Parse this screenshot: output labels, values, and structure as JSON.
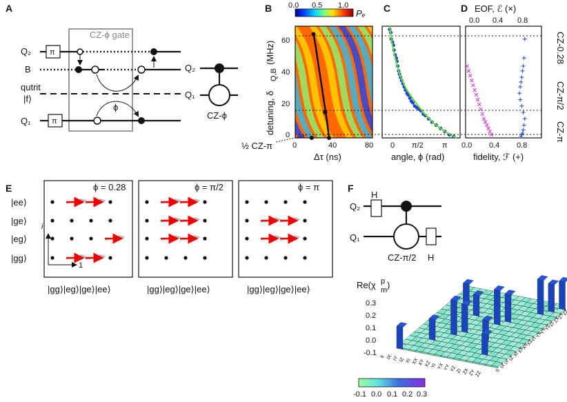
{
  "panels": {
    "A": {
      "letter": "A",
      "box_title": "CZ-ϕ gate",
      "q2": "Q₂",
      "b": "B",
      "qutrit": "qutrit",
      "f_state": "|f⟩",
      "q1": "Q₁",
      "pi": "π",
      "phi": "ϕ",
      "sym_q2": "Q₂",
      "sym_q1": "Q₁",
      "sym_label": "CZ-ϕ"
    },
    "B": {
      "letter": "B",
      "colorbar_ticks": [
        "0.0",
        "0.5",
        "1.0"
      ],
      "colorbar_label": "Pₑ",
      "ylabel": "detuning, δ",
      "ylabel_sub": "Q,B",
      "ylabel_unit": "(MHz)",
      "xlabel": "Δτ  (ns)",
      "x_ticks": [
        "0",
        "40",
        "80"
      ],
      "y_ticks": [
        "0",
        "20",
        "40",
        "60"
      ],
      "annotation": "½ CZ-π"
    },
    "C": {
      "letter": "C",
      "xlabel": "angle, ϕ (rad)",
      "x_ticks": [
        "0",
        "π/2",
        "π"
      ]
    },
    "D": {
      "letter": "D",
      "top_label": "EOF, ℰ (×)",
      "top_ticks": [
        "0.0",
        "0.4",
        "0.8"
      ],
      "xlabel": "fidelity, ℱ (+)",
      "x_ticks": [
        "0.0",
        "0.4",
        "0.8"
      ],
      "right_labels": [
        "CZ-0.28",
        "CZ-π/2",
        "CZ-π"
      ]
    },
    "E": {
      "letter": "E",
      "row_labels": [
        "|ee⟩",
        "|ge⟩",
        "|eg⟩",
        "|gg⟩"
      ],
      "col_labels": "|gg⟩|eg⟩|ge⟩|ee⟩",
      "titles": [
        "ϕ = 0.28",
        "ϕ = π/2",
        "ϕ = π"
      ],
      "axis_i": "i",
      "axis_1": "1"
    },
    "F": {
      "letter": "F",
      "h": "H",
      "q2": "Q₂",
      "q1": "Q₁",
      "gate": "CZ-π/2",
      "zlabel": "Re(χ",
      "zlabel_sup": "p",
      "zlabel_sub": "m",
      "z_ticks": [
        "0.3",
        "0.2",
        "0.1",
        "0.0",
        "-0.1"
      ],
      "cb_ticks": [
        "-0.1",
        "0.0",
        "0.1",
        "0.2",
        "0.3"
      ],
      "basis": [
        "II",
        "IX",
        "IY",
        "IZ",
        "XI",
        "XX",
        "XY",
        "XZ",
        "YI",
        "YX",
        "YY",
        "YZ",
        "ZI",
        "ZX",
        "ZY",
        "ZZ"
      ]
    }
  },
  "chart_data": [
    {
      "type": "heatmap",
      "panel": "B",
      "xlabel": "Δτ  (ns)",
      "ylabel": "detuning, δQ,B (MHz)",
      "xlim": [
        0,
        80
      ],
      "ylim": [
        0,
        70
      ],
      "colorbar_range": [
        0,
        1
      ],
      "trajectory": {
        "x": [
          19,
          21,
          23,
          25,
          27,
          29,
          31,
          33,
          35
        ],
        "y": [
          65,
          58,
          50,
          42,
          34,
          26,
          18,
          10,
          0
        ]
      },
      "markers": [
        {
          "x": 19,
          "y": 65
        },
        {
          "x": 31,
          "y": 16
        },
        {
          "x": 17,
          "y": 0
        },
        {
          "x": 35,
          "y": 0
        }
      ]
    },
    {
      "type": "scatter",
      "panel": "C",
      "xlabel": "angle, ϕ (rad)",
      "xlim": [
        -0.3,
        3.3
      ],
      "ylim": [
        0,
        70
      ],
      "series": [
        {
          "style": "blue-points",
          "x": [
            0.05,
            0.1,
            0.12,
            0.18,
            0.22,
            0.25,
            0.3,
            0.35,
            0.38,
            0.42,
            0.46,
            0.5,
            0.55,
            0.6,
            0.66,
            0.72,
            0.78,
            0.85,
            0.9,
            0.98,
            1.05,
            1.12,
            1.2,
            1.3,
            1.4,
            1.5,
            1.6,
            1.7,
            1.85,
            2.0,
            2.2,
            2.4,
            2.6,
            2.8,
            3.0
          ],
          "y": [
            68,
            66,
            62,
            60,
            58,
            55,
            52,
            50,
            48,
            45,
            42,
            40,
            38,
            36,
            34,
            32,
            30,
            28,
            27,
            25,
            23,
            22,
            20,
            19,
            18,
            17,
            15,
            14,
            12,
            10,
            8,
            6,
            4,
            2,
            1
          ]
        },
        {
          "style": "green-line",
          "x": [
            0.05,
            0.15,
            0.3,
            0.5,
            0.8,
            1.2,
            1.6,
            2.1,
            2.6,
            3.14
          ],
          "y": [
            70,
            60,
            50,
            40,
            31,
            23,
            16,
            9,
            4,
            0
          ]
        }
      ]
    },
    {
      "type": "scatter",
      "panel": "D",
      "xlabel": "fidelity, ℱ (+)",
      "xlim": [
        0,
        1
      ],
      "ylim": [
        0,
        70
      ],
      "series": [
        {
          "style": "magenta-x",
          "x": [
            0.02,
            0.04,
            0.06,
            0.08,
            0.1,
            0.12,
            0.14,
            0.16,
            0.18,
            0.2,
            0.22,
            0.24,
            0.26,
            0.28,
            0.3,
            0.32,
            0.34
          ],
          "y": [
            45,
            42,
            39,
            36,
            33,
            30,
            27,
            24,
            21,
            18,
            15,
            12,
            10,
            8,
            6,
            4,
            2
          ]
        },
        {
          "style": "blue-plus",
          "x": [
            0.78,
            0.77,
            0.76,
            0.75,
            0.74,
            0.73,
            0.72,
            0.71,
            0.72,
            0.74,
            0.76,
            0.78,
            0.77,
            0.76,
            0.75,
            0.74,
            0.73
          ],
          "y": [
            62,
            50,
            45,
            42,
            38,
            35,
            32,
            28,
            24,
            20,
            16,
            12,
            8,
            5,
            3,
            2,
            1
          ]
        }
      ]
    }
  ]
}
